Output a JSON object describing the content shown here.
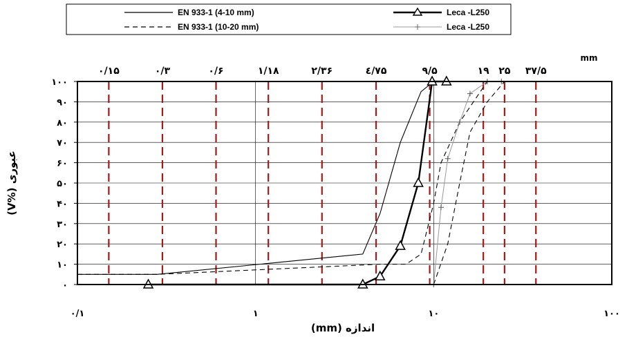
{
  "chart_data": {
    "type": "line",
    "title": "",
    "xscale": "log",
    "xlim": [
      0.1,
      100
    ],
    "ylim": [
      0,
      100
    ],
    "grid": true,
    "legend_position": "top",
    "xlabel": "اندازه (mm)",
    "ylabel": "عبوری (%V)",
    "top_unit": "mm",
    "x_ticks": [
      {
        "value": 0.1,
        "label": "۰/۱"
      },
      {
        "value": 1,
        "label": "۱"
      },
      {
        "value": 10,
        "label": "۱۰"
      },
      {
        "value": 100,
        "label": "۱۰۰"
      }
    ],
    "y_ticks": [
      {
        "value": 0,
        "label": "۰"
      },
      {
        "value": 10,
        "label": "۱۰"
      },
      {
        "value": 20,
        "label": "۲۰"
      },
      {
        "value": 30,
        "label": "۳۰"
      },
      {
        "value": 40,
        "label": "۴۰"
      },
      {
        "value": 50,
        "label": "۵۰"
      },
      {
        "value": 60,
        "label": "۶۰"
      },
      {
        "value": 70,
        "label": "۷۰"
      },
      {
        "value": 80,
        "label": "۸۰"
      },
      {
        "value": 90,
        "label": "۹۰"
      },
      {
        "value": 100,
        "label": "۱۰۰"
      }
    ],
    "sieves": [
      {
        "value": 0.15,
        "label": "۰/۱۵"
      },
      {
        "value": 0.3,
        "label": "۰/۳"
      },
      {
        "value": 0.6,
        "label": "۰/۶"
      },
      {
        "value": 1.18,
        "label": "۱/۱۸"
      },
      {
        "value": 2.36,
        "label": "۲/۳۶"
      },
      {
        "value": 4.75,
        "label": "٤/۷۵"
      },
      {
        "value": 9.5,
        "label": "۹/۵"
      },
      {
        "value": 19,
        "label": "۱۹"
      },
      {
        "value": 25,
        "label": "۲۵"
      },
      {
        "value": 37.5,
        "label": "۳۷/۵"
      }
    ],
    "colors": {
      "sieve_line": "#a31a1a",
      "grid": "#000000",
      "series_light": "#999999"
    },
    "series": [
      {
        "name": "EN 933-1 (4-10 mm)",
        "style": "solid-thin",
        "x": [
          0.1,
          0.28,
          4.0,
          5.0,
          6.5,
          8.5,
          10,
          12.5
        ],
        "y": [
          5,
          5,
          15,
          35,
          70,
          95,
          100,
          100
        ]
      },
      {
        "name": "EN 933-1 (10-20 mm)",
        "style": "dashed",
        "x": [
          0.1,
          0.28,
          5.0,
          7.0,
          8.5,
          10,
          11,
          14,
          20
        ],
        "y": [
          5,
          5,
          10,
          10,
          15,
          40,
          60,
          80,
          100
        ],
        "x2": [
          10,
          12,
          14,
          16,
          20,
          25
        ],
        "y2": [
          0,
          20,
          50,
          75,
          90,
          100
        ]
      },
      {
        "name": "Leca -L250",
        "style": "bold-triangle",
        "x": [
          0.25,
          4.0,
          5.0,
          6.5,
          8.2,
          9.8,
          11.8
        ],
        "y": [
          0,
          0,
          4,
          19,
          50,
          100,
          100
        ]
      },
      {
        "name": "Leca -L250",
        "style": "thin-plus",
        "x": [
          10,
          11,
          12,
          14,
          16,
          20,
          24
        ],
        "y": [
          0,
          38,
          62,
          80,
          94,
          100,
          100
        ]
      }
    ]
  }
}
